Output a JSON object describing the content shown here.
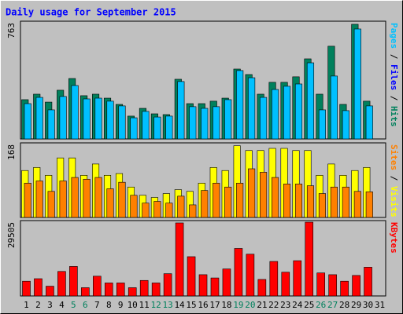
{
  "chart_data": {
    "type": "bar",
    "title": "Daily usage for September 2015",
    "categories": [
      "1",
      "2",
      "3",
      "4",
      "5",
      "6",
      "7",
      "8",
      "9",
      "10",
      "11",
      "12",
      "13",
      "14",
      "15",
      "16",
      "17",
      "18",
      "19",
      "20",
      "21",
      "22",
      "23",
      "24",
      "25",
      "26",
      "27",
      "28",
      "29",
      "30",
      "31"
    ],
    "category_colors": [
      "#000000",
      "#000000",
      "#000000",
      "#000000",
      "#00805c",
      "#00805c",
      "#000000",
      "#000000",
      "#000000",
      "#000000",
      "#000000",
      "#00805c",
      "#00805c",
      "#000000",
      "#000000",
      "#000000",
      "#000000",
      "#000000",
      "#00805c",
      "#00805c",
      "#000000",
      "#000000",
      "#000000",
      "#000000",
      "#000000",
      "#00805c",
      "#00805c",
      "#000000",
      "#000000",
      "#000000",
      "#000000"
    ],
    "panels": [
      {
        "ylim": [
          0,
          763
        ],
        "yticks": [
          763
        ],
        "axis_label": [
          {
            "text": "Pages",
            "color": "#00c0ff"
          },
          {
            "text": " / ",
            "color": "#000000"
          },
          {
            "text": "Files",
            "color": "#0000ff"
          },
          {
            "text": " / ",
            "color": "#000000"
          },
          {
            "text": "Hits",
            "color": "#00805c"
          }
        ],
        "series": [
          {
            "name": "Hits",
            "color": "#00805c",
            "values": [
              258,
              294,
              242,
              320,
              397,
              284,
              294,
              268,
              227,
              150,
              201,
              165,
              160,
              392,
              232,
              232,
              248,
              268,
              459,
              423,
              294,
              372,
              372,
              408,
              526,
              294,
              609,
              227,
              753,
              248,
              0
            ]
          },
          {
            "name": "Pages",
            "color": "#00c0ff",
            "values": [
              232,
              273,
              191,
              279,
              351,
              263,
              268,
              248,
              217,
              139,
              181,
              144,
              150,
              377,
              212,
              201,
              212,
              258,
              449,
              402,
              273,
              325,
              346,
              361,
              500,
              191,
              413,
              186,
              722,
              217,
              0
            ]
          }
        ]
      },
      {
        "ylim": [
          0,
          168
        ],
        "yticks": [
          168
        ],
        "axis_label": [
          {
            "text": "Sites",
            "color": "#ff8000"
          },
          {
            "text": " / ",
            "color": "#000000"
          },
          {
            "text": "Visits",
            "color": "#ffff00"
          }
        ],
        "series": [
          {
            "name": "Visits",
            "color": "#ffff00",
            "values": [
              108,
              115,
              97,
              137,
              137,
              97,
              123,
              97,
              101,
              70,
              51,
              46,
              55,
              64,
              60,
              79,
              115,
              108,
              165,
              154,
              154,
              159,
              159,
              154,
              154,
              97,
              123,
              97,
              108,
              115,
              0
            ]
          },
          {
            "name": "Sites",
            "color": "#ff8000",
            "values": [
              79,
              84,
              60,
              84,
              92,
              88,
              92,
              66,
              81,
              51,
              33,
              37,
              33,
              49,
              29,
              62,
              79,
              70,
              79,
              112,
              104,
              92,
              77,
              77,
              73,
              55,
              70,
              70,
              60,
              59,
              0
            ]
          }
        ]
      },
      {
        "ylim": [
          0,
          29505
        ],
        "yticks": [
          29505
        ],
        "axis_label": [
          {
            "text": "KBytes",
            "color": "#ff0000"
          }
        ],
        "series": [
          {
            "name": "KBytes",
            "color": "#ff0000",
            "values": [
              5900,
              6900,
              3900,
              9800,
              11800,
              3300,
              7900,
              5200,
              5200,
              3300,
              6200,
              5200,
              8900,
              29200,
              15700,
              8500,
              7200,
              10800,
              19000,
              16700,
              6600,
              13800,
              9500,
              14100,
              29505,
              9200,
              8500,
              5900,
              8200,
              11500,
              0
            ]
          }
        ]
      }
    ]
  }
}
